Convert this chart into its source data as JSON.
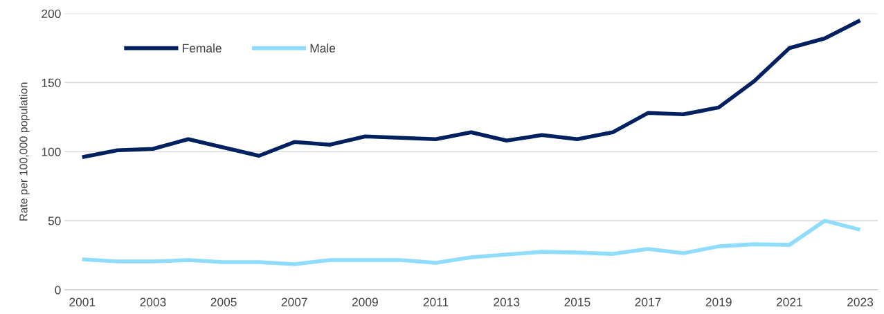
{
  "chart_data": {
    "type": "line",
    "ylabel": "Rate per 100,000 population",
    "x": [
      2001,
      2002,
      2003,
      2004,
      2005,
      2006,
      2007,
      2008,
      2009,
      2010,
      2011,
      2012,
      2013,
      2014,
      2015,
      2016,
      2017,
      2018,
      2019,
      2020,
      2021,
      2022,
      2023
    ],
    "series": [
      {
        "name": "Female",
        "color": "#002060",
        "values": [
          96,
          101,
          102,
          109,
          103,
          97,
          107,
          105,
          111,
          110,
          109,
          114,
          108,
          112,
          109,
          114,
          128,
          127,
          132,
          151,
          175,
          182,
          195
        ]
      },
      {
        "name": "Male",
        "color": "#8fdcfc",
        "values": [
          22,
          20.5,
          20.5,
          21.5,
          20,
          20,
          18.5,
          21.5,
          21.5,
          21.5,
          19.5,
          23.5,
          25.5,
          27.5,
          27,
          26,
          29.5,
          26.5,
          31.5,
          33,
          32.5,
          50,
          43.5
        ]
      }
    ],
    "xlim": [
      2000.5,
      2023.5
    ],
    "xticks": [
      2001,
      2003,
      2005,
      2007,
      2009,
      2011,
      2013,
      2015,
      2017,
      2019,
      2021,
      2023
    ],
    "ylim": [
      0,
      200
    ],
    "yticks": [
      0,
      50,
      100,
      150,
      200
    ],
    "grid": "y",
    "legend": "top left",
    "marker": "none",
    "line_style": "solid"
  }
}
